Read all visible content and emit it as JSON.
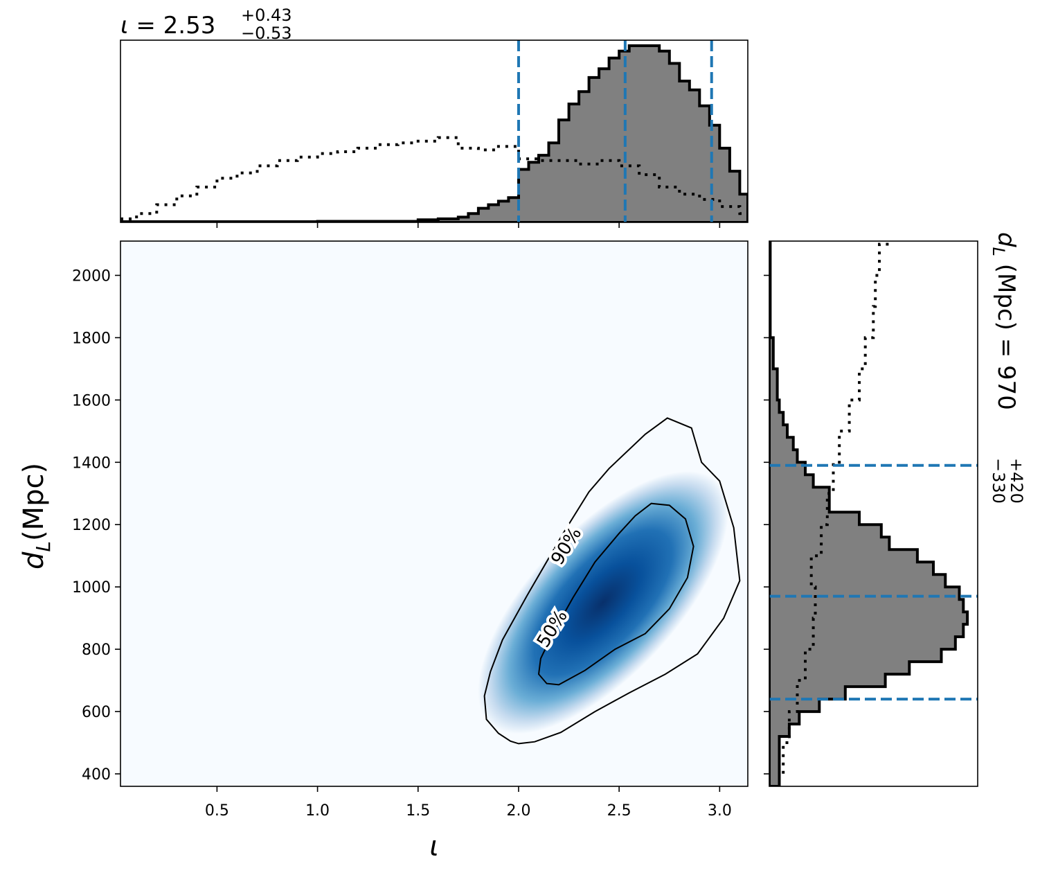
{
  "top_title": {
    "param": "ι",
    "median": "2.53",
    "plus": "+0.43",
    "minus": "−0.53"
  },
  "right_title": {
    "param": "d",
    "sub": "L",
    "unit": "(Mpc)",
    "median": "970",
    "plus": "+420",
    "minus": "−330"
  },
  "colors": {
    "posterior_fill": "#808080",
    "posterior_edge": "#000000",
    "quantile_line": "#1f77b4",
    "density_low": "#f7fbff",
    "density_high": "#08306b",
    "contour": "#000000"
  },
  "chart_data": [
    {
      "id": "joint",
      "type": "heatmap",
      "xlabel": "ι",
      "ylabel": "d",
      "ylabel_sub": "L",
      "ylabel_unit": "(Mpc)",
      "xlim": [
        0.02,
        3.14
      ],
      "ylim": [
        360,
        2110
      ],
      "xticks": [
        0.5,
        1.0,
        1.5,
        2.0,
        2.5,
        3.0
      ],
      "xtick_labels": [
        "0.5",
        "1.0",
        "1.5",
        "2.0",
        "2.5",
        "3.0"
      ],
      "yticks": [
        400,
        600,
        800,
        1000,
        1200,
        1400,
        1600,
        1800,
        2000
      ],
      "ytick_labels": [
        "400",
        "600",
        "800",
        "1000",
        "1200",
        "1400",
        "1600",
        "1800",
        "2000"
      ],
      "density_peak": {
        "x": 2.42,
        "y": 950
      },
      "contours": [
        {
          "label": "90%",
          "points": [
            [
              2.0,
              497
            ],
            [
              2.08,
              503
            ],
            [
              2.21,
              533
            ],
            [
              2.38,
              600
            ],
            [
              2.55,
              660
            ],
            [
              2.73,
              720
            ],
            [
              2.89,
              785
            ],
            [
              3.02,
              900
            ],
            [
              3.1,
              1020
            ],
            [
              3.07,
              1190
            ],
            [
              3.0,
              1340
            ],
            [
              2.91,
              1400
            ],
            [
              2.86,
              1510
            ],
            [
              2.74,
              1542
            ],
            [
              2.63,
              1490
            ],
            [
              2.45,
              1380
            ],
            [
              2.35,
              1305
            ],
            [
              2.22,
              1170
            ],
            [
              2.04,
              970
            ],
            [
              1.92,
              830
            ],
            [
              1.86,
              728
            ],
            [
              1.83,
              650
            ],
            [
              1.84,
              575
            ],
            [
              1.9,
              530
            ],
            [
              1.96,
              505
            ],
            [
              2.0,
              497
            ]
          ]
        },
        {
          "label": "50%",
          "points": [
            [
              2.2,
              686
            ],
            [
              2.33,
              732
            ],
            [
              2.48,
              800
            ],
            [
              2.63,
              850
            ],
            [
              2.75,
              930
            ],
            [
              2.84,
              1030
            ],
            [
              2.87,
              1130
            ],
            [
              2.83,
              1218
            ],
            [
              2.75,
              1262
            ],
            [
              2.66,
              1268
            ],
            [
              2.58,
              1228
            ],
            [
              2.5,
              1172
            ],
            [
              2.38,
              1080
            ],
            [
              2.27,
              965
            ],
            [
              2.17,
              850
            ],
            [
              2.11,
              770
            ],
            [
              2.1,
              720
            ],
            [
              2.14,
              690
            ],
            [
              2.2,
              686
            ]
          ]
        }
      ]
    },
    {
      "id": "marginal_iota",
      "type": "area",
      "xlim": [
        0.02,
        3.14
      ],
      "quantiles": [
        2.0,
        2.53,
        2.96
      ],
      "series": [
        {
          "style": "filled-step",
          "x": [
            0.02,
            0.5,
            1.0,
            1.5,
            1.6,
            1.7,
            1.75,
            1.8,
            1.85,
            1.9,
            1.95,
            2.0,
            2.05,
            2.1,
            2.15,
            2.2,
            2.25,
            2.3,
            2.35,
            2.4,
            2.45,
            2.5,
            2.55,
            2.6,
            2.65,
            2.7,
            2.75,
            2.8,
            2.85,
            2.9,
            2.95,
            3.0,
            3.05,
            3.1,
            3.14
          ],
          "y": [
            0.004,
            0.004,
            0.006,
            0.015,
            0.02,
            0.03,
            0.05,
            0.08,
            0.1,
            0.12,
            0.14,
            0.3,
            0.34,
            0.38,
            0.45,
            0.58,
            0.67,
            0.74,
            0.82,
            0.87,
            0.93,
            0.97,
            1.0,
            1.0,
            1.0,
            0.97,
            0.9,
            0.8,
            0.75,
            0.66,
            0.55,
            0.42,
            0.29,
            0.16,
            0.1
          ]
        },
        {
          "style": "dotted",
          "x": [
            0.02,
            0.1,
            0.2,
            0.3,
            0.4,
            0.5,
            0.6,
            0.7,
            0.8,
            0.9,
            1.0,
            1.1,
            1.2,
            1.3,
            1.4,
            1.5,
            1.6,
            1.7,
            1.8,
            1.9,
            2.0,
            2.1,
            2.2,
            2.3,
            2.4,
            2.5,
            2.6,
            2.7,
            2.8,
            2.9,
            3.0,
            3.1,
            3.14
          ],
          "y": [
            0.02,
            0.05,
            0.1,
            0.15,
            0.2,
            0.25,
            0.28,
            0.32,
            0.35,
            0.37,
            0.39,
            0.4,
            0.42,
            0.44,
            0.45,
            0.46,
            0.48,
            0.42,
            0.41,
            0.43,
            0.36,
            0.35,
            0.35,
            0.33,
            0.35,
            0.32,
            0.27,
            0.2,
            0.16,
            0.13,
            0.09,
            0.05,
            0.04
          ]
        }
      ]
    },
    {
      "id": "marginal_dL",
      "type": "area",
      "ylim": [
        360,
        2110
      ],
      "quantiles": [
        640,
        970,
        1390
      ],
      "series": [
        {
          "style": "filled-step",
          "x": [
            360,
            520,
            560,
            600,
            640,
            680,
            720,
            760,
            800,
            840,
            880,
            920,
            960,
            1000,
            1040,
            1080,
            1120,
            1160,
            1200,
            1240,
            1280,
            1320,
            1360,
            1400,
            1440,
            1480,
            1520,
            1560,
            1600,
            1700,
            1800,
            2110
          ],
          "y": [
            0.05,
            0.1,
            0.15,
            0.25,
            0.38,
            0.58,
            0.7,
            0.86,
            0.93,
            0.97,
            0.99,
            0.97,
            0.95,
            0.88,
            0.82,
            0.74,
            0.6,
            0.56,
            0.45,
            0.3,
            0.3,
            0.22,
            0.18,
            0.14,
            0.12,
            0.09,
            0.07,
            0.05,
            0.04,
            0.02,
            0.005,
            0.0
          ]
        },
        {
          "style": "dotted",
          "x": [
            360,
            400,
            500,
            600,
            700,
            800,
            900,
            1000,
            1100,
            1200,
            1300,
            1400,
            1500,
            1600,
            1700,
            1800,
            1900,
            2000,
            2100
          ],
          "y": [
            0.05,
            0.07,
            0.1,
            0.14,
            0.18,
            0.22,
            0.23,
            0.21,
            0.26,
            0.29,
            0.32,
            0.35,
            0.4,
            0.45,
            0.48,
            0.52,
            0.53,
            0.55,
            0.6
          ]
        }
      ]
    }
  ]
}
